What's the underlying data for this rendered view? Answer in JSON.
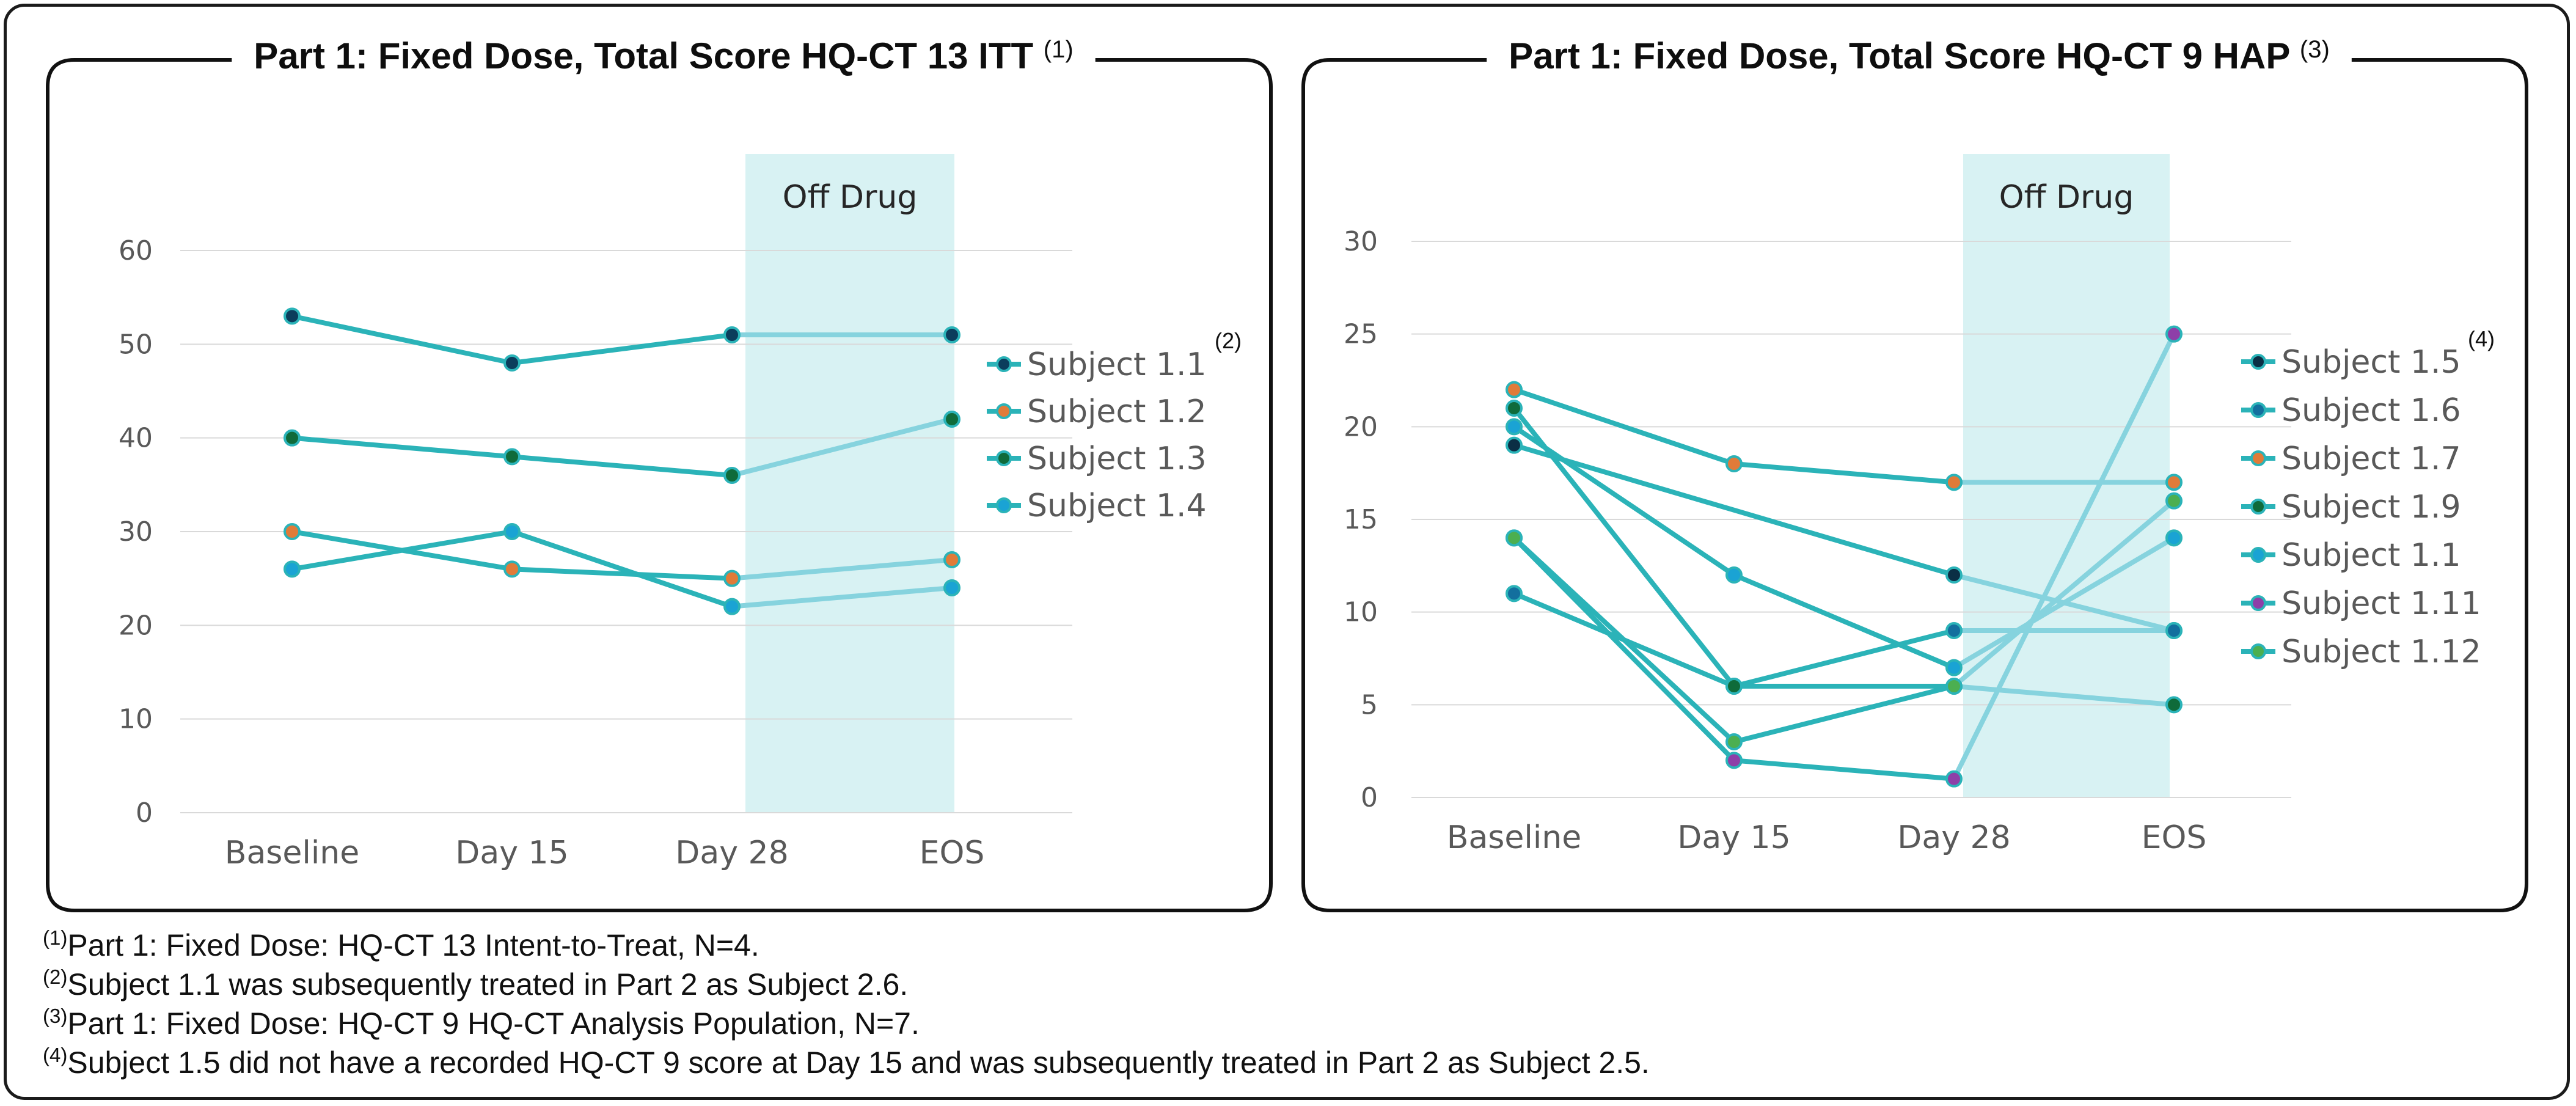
{
  "chart_data": [
    {
      "type": "line",
      "title": "Part 1: Fixed Dose, Total Score HQ-CT 13 ITT",
      "title_note": "(1)",
      "categories": [
        "Baseline",
        "Day 15",
        "Day 28",
        "EOS"
      ],
      "ylim": [
        0,
        60
      ],
      "yticks": [
        0,
        10,
        20,
        30,
        40,
        50,
        60
      ],
      "grid": true,
      "legend_position": "right",
      "legend_note": "(2)",
      "shaded_region": {
        "label": "Off Drug",
        "from": "Day 28",
        "to": "EOS"
      },
      "series": [
        {
          "name": "Subject 1.1",
          "marker_color": "#0b3d5c",
          "values": [
            53,
            48,
            51,
            51
          ]
        },
        {
          "name": "Subject 1.2",
          "marker_color": "#e07b39",
          "values": [
            30,
            26,
            25,
            27
          ]
        },
        {
          "name": "Subject 1.3",
          "marker_color": "#0f6b3a",
          "values": [
            40,
            38,
            36,
            42
          ]
        },
        {
          "name": "Subject 1.4",
          "marker_color": "#1aa3d4",
          "values": [
            26,
            30,
            22,
            24
          ]
        }
      ]
    },
    {
      "type": "line",
      "title": "Part 1: Fixed Dose, Total Score HQ-CT 9 HAP",
      "title_note": "(3)",
      "categories": [
        "Baseline",
        "Day 15",
        "Day 28",
        "EOS"
      ],
      "ylim": [
        0,
        30
      ],
      "yticks": [
        0,
        5,
        10,
        15,
        20,
        25,
        30
      ],
      "grid": true,
      "legend_position": "right",
      "legend_note": "(4)",
      "shaded_region": {
        "label": "Off Drug",
        "from": "Day 28",
        "to": "EOS"
      },
      "series": [
        {
          "name": "Subject 1.5",
          "marker_color": "#0b2f45",
          "values": [
            19,
            null,
            12,
            9
          ]
        },
        {
          "name": "Subject 1.6",
          "marker_color": "#136f9e",
          "values": [
            11,
            6,
            9,
            9
          ]
        },
        {
          "name": "Subject 1.7",
          "marker_color": "#e07b39",
          "values": [
            22,
            18,
            17,
            17
          ]
        },
        {
          "name": "Subject 1.9",
          "marker_color": "#0f6b3a",
          "values": [
            21,
            6,
            6,
            5
          ]
        },
        {
          "name": "Subject 1.1",
          "marker_color": "#1aa3d4",
          "values": [
            20,
            12,
            7,
            14
          ]
        },
        {
          "name": "Subject 1.11",
          "marker_color": "#8e3fa8",
          "values": [
            14,
            2,
            1,
            25
          ]
        },
        {
          "name": "Subject 1.12",
          "marker_color": "#4caf50",
          "values": [
            14,
            3,
            6,
            16
          ]
        }
      ]
    }
  ],
  "colors": {
    "on_drug_line": "#2bb3b8",
    "off_drug_line": "#86d3de",
    "off_drug_band": "#d8f2f3"
  },
  "footnotes": [
    {
      "marker": "(1)",
      "text": "Part 1: Fixed Dose: HQ-CT 13 Intent-to-Treat, N=4."
    },
    {
      "marker": "(2)",
      "text": "Subject 1.1 was subsequently treated in Part 2 as Subject 2.6."
    },
    {
      "marker": "(3)",
      "text": "Part 1: Fixed Dose: HQ-CT 9 HQ-CT Analysis Population, N=7."
    },
    {
      "marker": "(4)",
      "text": "Subject 1.5 did not have a recorded HQ-CT 9 score at Day 15 and was subsequently treated in Part 2 as Subject 2.5."
    }
  ]
}
